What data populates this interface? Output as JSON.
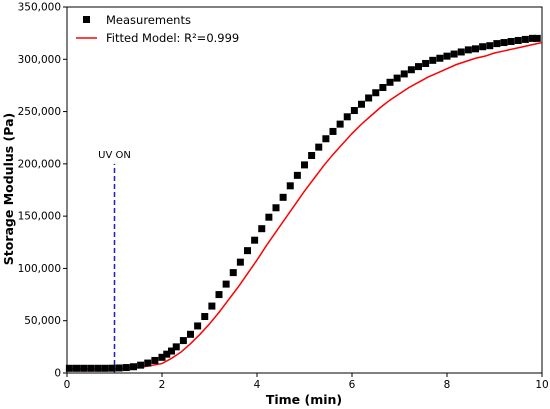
{
  "chart_data": {
    "type": "scatter",
    "xlabel": "Time (min)",
    "ylabel": "Storage Modulus (Pa)",
    "xlim": [
      0,
      10
    ],
    "ylim": [
      0,
      350000
    ],
    "x_ticks": [
      0,
      2,
      4,
      6,
      8,
      10
    ],
    "y_ticks": [
      0,
      50000,
      100000,
      150000,
      200000,
      250000,
      300000,
      350000
    ],
    "x_tick_labels": [
      "0",
      "2",
      "4",
      "6",
      "8",
      "10"
    ],
    "y_tick_labels": [
      "0",
      "50,000",
      "100,000",
      "150,000",
      "200,000",
      "250,000",
      "300,000",
      "350,000"
    ],
    "grid": false,
    "legend_position": "top-left",
    "series": [
      {
        "name": "Measurements",
        "type": "scatter",
        "marker": "square",
        "color": "#000000",
        "x": [
          0.05,
          0.2,
          0.35,
          0.5,
          0.65,
          0.8,
          0.95,
          1.1,
          1.25,
          1.4,
          1.55,
          1.7,
          1.85,
          2.0,
          2.1,
          2.2,
          2.3,
          2.45,
          2.6,
          2.75,
          2.9,
          3.05,
          3.2,
          3.35,
          3.5,
          3.65,
          3.8,
          3.95,
          4.1,
          4.25,
          4.4,
          4.55,
          4.7,
          4.85,
          5.0,
          5.15,
          5.3,
          5.45,
          5.6,
          5.75,
          5.9,
          6.05,
          6.2,
          6.35,
          6.5,
          6.65,
          6.8,
          6.95,
          7.1,
          7.25,
          7.4,
          7.55,
          7.7,
          7.85,
          8.0,
          8.15,
          8.3,
          8.45,
          8.6,
          8.75,
          8.9,
          9.05,
          9.2,
          9.35,
          9.5,
          9.65,
          9.8,
          9.9
        ],
        "y": [
          4500,
          4500,
          4500,
          4500,
          4500,
          4500,
          4600,
          4800,
          5200,
          6000,
          7500,
          9500,
          12000,
          15000,
          18000,
          21000,
          25000,
          31000,
          37000,
          45000,
          54000,
          64000,
          75000,
          85000,
          96000,
          106000,
          117000,
          127000,
          138000,
          149000,
          158000,
          168000,
          179000,
          189000,
          199000,
          208000,
          216000,
          224000,
          231000,
          238000,
          245000,
          251000,
          257000,
          263000,
          268000,
          273000,
          278000,
          282000,
          286000,
          290000,
          293000,
          296000,
          299000,
          301000,
          303000,
          305000,
          307000,
          309000,
          310000,
          312000,
          313000,
          315000,
          316000,
          317000,
          318000,
          319000,
          320000,
          320000
        ]
      },
      {
        "name": "Fitted Model: R²=0.999",
        "type": "line",
        "color": "#ff0000",
        "x": [
          0,
          0.5,
          1.0,
          1.5,
          2.0,
          2.2,
          2.4,
          2.6,
          2.8,
          3.0,
          3.2,
          3.4,
          3.6,
          3.8,
          4.0,
          4.2,
          4.4,
          4.6,
          4.8,
          5.0,
          5.2,
          5.4,
          5.6,
          5.8,
          6.0,
          6.2,
          6.4,
          6.6,
          6.8,
          7.0,
          7.2,
          7.4,
          7.6,
          7.8,
          8.0,
          8.2,
          8.4,
          8.6,
          8.8,
          9.0,
          9.2,
          9.4,
          9.6,
          9.8,
          10.0
        ],
        "y": [
          4000,
          4000,
          4000,
          5000,
          9000,
          14000,
          20000,
          28000,
          37000,
          47000,
          58000,
          70000,
          82000,
          95000,
          108000,
          122000,
          135000,
          148000,
          161000,
          174000,
          186000,
          198000,
          209000,
          219000,
          229000,
          238000,
          246000,
          254000,
          261000,
          267000,
          273000,
          278000,
          283000,
          287000,
          291000,
          295000,
          298000,
          301000,
          303000,
          306000,
          308000,
          310000,
          312000,
          314000,
          316000
        ]
      }
    ],
    "annotations": [
      {
        "text": "UV ON",
        "type": "vertical-line",
        "x": 1.0,
        "y_from": 0,
        "y_to": 200000,
        "color": "#1f1fbf",
        "style": "dashed"
      }
    ]
  }
}
